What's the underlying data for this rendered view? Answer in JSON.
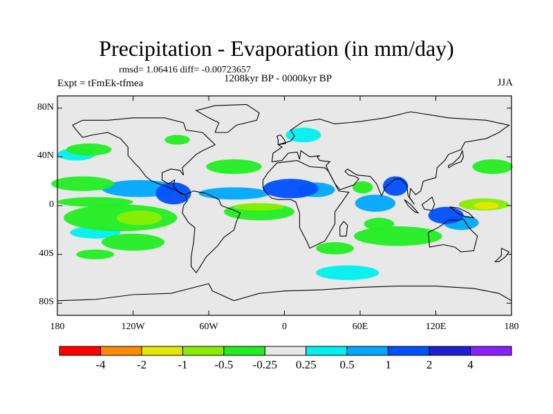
{
  "title": "Precipitation - Evaporation (in mm/day)",
  "stats": "rmsd= 1.06416 diff= -0.00723657",
  "period": "1208kyr BP - 0000kyr BP",
  "experiment": "Expt = tFmEk-tfmea",
  "season": "JJA",
  "chart_data": {
    "type": "heatmap",
    "projection": "cylindrical equidistant",
    "lon_range": [
      -180,
      180
    ],
    "lat_range": [
      -90,
      90
    ],
    "x_ticks": [
      {
        "lon": -180,
        "label": "180"
      },
      {
        "lon": -120,
        "label": "120W"
      },
      {
        "lon": -60,
        "label": "60W"
      },
      {
        "lon": 0,
        "label": "0"
      },
      {
        "lon": 60,
        "label": "60E"
      },
      {
        "lon": 120,
        "label": "120E"
      },
      {
        "lon": 180,
        "label": "180"
      }
    ],
    "y_ticks": [
      {
        "lat": 80,
        "label": "80N"
      },
      {
        "lat": 40,
        "label": "40N"
      },
      {
        "lat": 0,
        "label": "0"
      },
      {
        "lat": -40,
        "label": "40S"
      },
      {
        "lat": -80,
        "label": "80S"
      }
    ],
    "colorbar": {
      "colors": [
        "#ff0000",
        "#ff8c00",
        "#e6e600",
        "#88ee00",
        "#22ee22",
        "#e8e8e8",
        "#00f0f0",
        "#00a8ff",
        "#0050ff",
        "#2020d0",
        "#8a20ff"
      ],
      "levels": [
        "-4",
        "-2",
        "-1",
        "-0.5",
        "-0.25",
        "0.25",
        "0.5",
        "1",
        "2",
        "4"
      ]
    },
    "regions": [
      {
        "name": "east-pacific-itcz-wet",
        "lon": -115,
        "lat": 14,
        "rx": 30,
        "ry": 7,
        "level": 1
      },
      {
        "name": "central-america-wet",
        "lon": -88,
        "lat": 10,
        "rx": 14,
        "ry": 9,
        "level": 2
      },
      {
        "name": "atlantic-itcz-wet",
        "lon": -40,
        "lat": 10,
        "rx": 28,
        "ry": 5,
        "level": 1
      },
      {
        "name": "west-africa-wet",
        "lon": 5,
        "lat": 14,
        "rx": 22,
        "ry": 8,
        "level": 2
      },
      {
        "name": "sahel-east-wet",
        "lon": 25,
        "lat": 13,
        "rx": 15,
        "ry": 6,
        "level": 1
      },
      {
        "name": "indian-ocean-wet",
        "lon": 72,
        "lat": 2,
        "rx": 16,
        "ry": 7,
        "level": 1
      },
      {
        "name": "bay-of-bengal-wet",
        "lon": 88,
        "lat": 16,
        "rx": 10,
        "ry": 8,
        "level": 2
      },
      {
        "name": "maritime-continent-wet",
        "lon": 128,
        "lat": -8,
        "rx": 14,
        "ry": 7,
        "level": 2
      },
      {
        "name": "west-pacific-wet",
        "lon": 140,
        "lat": -14,
        "rx": 14,
        "ry": 6,
        "level": 1
      },
      {
        "name": "south-pacific-wet",
        "lon": -150,
        "lat": -22,
        "rx": 20,
        "ry": 5,
        "level": 0
      },
      {
        "name": "southern-ocean-wet",
        "lon": 50,
        "lat": -55,
        "rx": 25,
        "ry": 6,
        "level": 0
      },
      {
        "name": "north-pacific-wet",
        "lon": -165,
        "lat": 42,
        "rx": 15,
        "ry": 5,
        "level": 0
      },
      {
        "name": "europe-wet",
        "lon": 15,
        "lat": 58,
        "rx": 14,
        "ry": 6,
        "level": 0
      },
      {
        "name": "south-pacific-dry",
        "lon": -130,
        "lat": -10,
        "rx": 45,
        "ry": 11,
        "level": -1
      },
      {
        "name": "south-pacific-dry-core",
        "lon": -115,
        "lat": -10,
        "rx": 18,
        "ry": 6,
        "level": -2
      },
      {
        "name": "north-pacific-dry",
        "lon": -160,
        "lat": 18,
        "rx": 25,
        "ry": 6,
        "level": -1
      },
      {
        "name": "pacific-equator-dry",
        "lon": -150,
        "lat": 3,
        "rx": 30,
        "ry": 4,
        "level": -1
      },
      {
        "name": "south-atlantic-dry",
        "lon": -20,
        "lat": -5,
        "rx": 28,
        "ry": 7,
        "level": -1
      },
      {
        "name": "atlantic-equator-dry",
        "lon": -20,
        "lat": -1,
        "rx": 20,
        "ry": 3,
        "level": -2
      },
      {
        "name": "north-atlantic-dry",
        "lon": -40,
        "lat": 32,
        "rx": 22,
        "ry": 6,
        "level": -1
      },
      {
        "name": "canada-dry",
        "lon": -85,
        "lat": 54,
        "rx": 10,
        "ry": 4,
        "level": -1
      },
      {
        "name": "north-pacific-midlat-dry",
        "lon": -155,
        "lat": 46,
        "rx": 18,
        "ry": 5,
        "level": -1
      },
      {
        "name": "south-indian-dry",
        "lon": 90,
        "lat": -25,
        "rx": 35,
        "ry": 8,
        "level": -1
      },
      {
        "name": "arabian-sea-dry",
        "lon": 62,
        "lat": 15,
        "rx": 8,
        "ry": 5,
        "level": -1
      },
      {
        "name": "west-pacific-warm-pool-dry",
        "lon": 158,
        "lat": 1,
        "rx": 20,
        "ry": 5,
        "level": -2
      },
      {
        "name": "west-pacific-core-dry",
        "lon": 160,
        "lat": 0,
        "rx": 10,
        "ry": 3,
        "level": -3
      },
      {
        "name": "northwest-pacific-dry",
        "lon": 165,
        "lat": 32,
        "rx": 16,
        "ry": 6,
        "level": -1
      },
      {
        "name": "south-pacific-east-dry",
        "lon": -120,
        "lat": -30,
        "rx": 25,
        "ry": 7,
        "level": -1
      },
      {
        "name": "southeast-pacific-band-dry",
        "lon": -150,
        "lat": -40,
        "rx": 15,
        "ry": 4,
        "level": -1
      },
      {
        "name": "south-indian-ocean-dry",
        "lon": 40,
        "lat": -35,
        "rx": 15,
        "ry": 5,
        "level": -1
      },
      {
        "name": "indian-ocean-south-dry",
        "lon": 75,
        "lat": -15,
        "rx": 12,
        "ry": 5,
        "level": -1
      }
    ]
  }
}
